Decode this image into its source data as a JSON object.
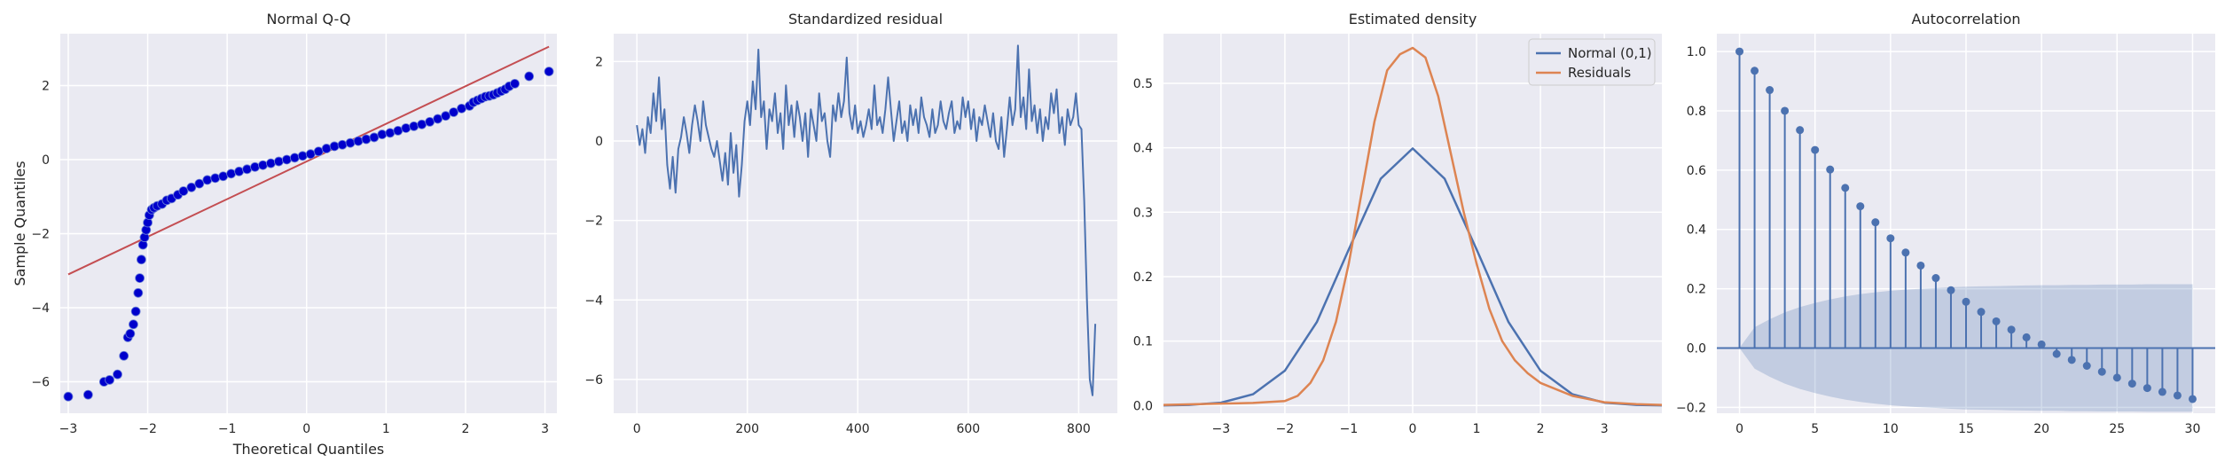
{
  "figure": {
    "background": "#ffffff",
    "axes_facecolor": "#eaeaf2",
    "grid_color": "#ffffff",
    "blue": "#4c72b0",
    "orange": "#dd8452",
    "qq_marker_color": "#0000cc",
    "qq_line_color": "#c44e52"
  },
  "chart_data": [
    {
      "type": "scatter",
      "title": "Normal Q-Q",
      "xlabel": "Theoretical Quantiles",
      "ylabel": "Sample Quantiles",
      "xlim": [
        -3.1,
        3.15
      ],
      "ylim": [
        -6.85,
        3.4
      ],
      "xticks": [
        -3,
        -2,
        -1,
        0,
        1,
        2,
        3
      ],
      "yticks": [
        -6,
        -4,
        -2,
        0,
        2
      ],
      "grid": true,
      "reference_line": {
        "x": [
          -3.0,
          3.05
        ],
        "y": [
          -3.1,
          3.05
        ]
      },
      "points": {
        "x": [
          -3.0,
          -2.75,
          -2.55,
          -2.48,
          -2.38,
          -2.3,
          -2.25,
          -2.22,
          -2.18,
          -2.15,
          -2.12,
          -2.1,
          -2.08,
          -2.06,
          -2.04,
          -2.02,
          -2.0,
          -1.98,
          -1.95,
          -1.92,
          -1.88,
          -1.82,
          -1.76,
          -1.7,
          -1.62,
          -1.55,
          -1.45,
          -1.35,
          -1.25,
          -1.15,
          -1.05,
          -0.95,
          -0.85,
          -0.75,
          -0.65,
          -0.55,
          -0.45,
          -0.35,
          -0.25,
          -0.15,
          -0.05,
          0.05,
          0.15,
          0.25,
          0.35,
          0.45,
          0.55,
          0.65,
          0.75,
          0.85,
          0.95,
          1.05,
          1.15,
          1.25,
          1.35,
          1.45,
          1.55,
          1.65,
          1.75,
          1.85,
          1.95,
          2.05,
          2.1,
          2.15,
          2.2,
          2.25,
          2.3,
          2.35,
          2.4,
          2.45,
          2.5,
          2.55,
          2.62,
          2.8,
          3.05
        ],
        "y": [
          -6.4,
          -6.35,
          -6.0,
          -5.95,
          -5.8,
          -5.3,
          -4.8,
          -4.7,
          -4.45,
          -4.1,
          -3.6,
          -3.2,
          -2.7,
          -2.3,
          -2.1,
          -1.9,
          -1.7,
          -1.5,
          -1.35,
          -1.3,
          -1.25,
          -1.2,
          -1.1,
          -1.05,
          -0.95,
          -0.85,
          -0.75,
          -0.65,
          -0.55,
          -0.5,
          -0.45,
          -0.38,
          -0.32,
          -0.26,
          -0.2,
          -0.15,
          -0.1,
          -0.05,
          0.0,
          0.05,
          0.1,
          0.15,
          0.22,
          0.3,
          0.36,
          0.4,
          0.45,
          0.5,
          0.55,
          0.6,
          0.68,
          0.72,
          0.78,
          0.85,
          0.9,
          0.95,
          1.02,
          1.1,
          1.18,
          1.28,
          1.38,
          1.45,
          1.55,
          1.6,
          1.65,
          1.7,
          1.72,
          1.75,
          1.8,
          1.85,
          1.9,
          1.98,
          2.05,
          2.25,
          2.38
        ]
      }
    },
    {
      "type": "line",
      "title": "Standardized residual",
      "xlim": [
        -42,
        870
      ],
      "ylim": [
        -6.85,
        2.7
      ],
      "xticks": [
        0,
        200,
        400,
        600,
        800
      ],
      "yticks": [
        -6,
        -4,
        -2,
        0,
        2
      ],
      "grid": true,
      "series": [
        {
          "x": [
            0,
            5,
            10,
            15,
            20,
            25,
            30,
            35,
            40,
            45,
            50,
            55,
            60,
            65,
            70,
            75,
            80,
            85,
            90,
            95,
            100,
            105,
            110,
            115,
            120,
            125,
            130,
            135,
            140,
            145,
            150,
            155,
            160,
            165,
            170,
            175,
            180,
            185,
            190,
            195,
            200,
            205,
            210,
            215,
            220,
            225,
            230,
            235,
            240,
            245,
            250,
            255,
            260,
            265,
            270,
            275,
            280,
            285,
            290,
            295,
            300,
            305,
            310,
            315,
            320,
            325,
            330,
            335,
            340,
            345,
            350,
            355,
            360,
            365,
            370,
            375,
            380,
            385,
            390,
            395,
            400,
            405,
            410,
            415,
            420,
            425,
            430,
            435,
            440,
            445,
            450,
            455,
            460,
            465,
            470,
            475,
            480,
            485,
            490,
            495,
            500,
            505,
            510,
            515,
            520,
            525,
            530,
            535,
            540,
            545,
            550,
            555,
            560,
            565,
            570,
            575,
            580,
            585,
            590,
            595,
            600,
            605,
            610,
            615,
            620,
            625,
            630,
            635,
            640,
            645,
            650,
            655,
            660,
            665,
            670,
            675,
            680,
            685,
            690,
            695,
            700,
            705,
            710,
            715,
            720,
            725,
            730,
            735,
            740,
            745,
            750,
            755,
            760,
            765,
            770,
            775,
            780,
            785,
            790,
            795,
            800,
            805,
            810,
            815,
            820,
            825,
            830
          ],
          "values": [
            0.4,
            -0.1,
            0.3,
            -0.3,
            0.6,
            0.2,
            1.2,
            0.5,
            1.6,
            0.3,
            0.8,
            -0.6,
            -1.2,
            -0.4,
            -1.3,
            -0.2,
            0.1,
            0.6,
            0.2,
            -0.3,
            0.4,
            0.9,
            0.5,
            0.0,
            1.0,
            0.4,
            0.1,
            -0.2,
            -0.4,
            0.0,
            -0.5,
            -1.0,
            -0.3,
            -1.1,
            0.2,
            -0.8,
            -0.1,
            -1.4,
            -0.6,
            0.5,
            1.0,
            0.4,
            1.5,
            0.8,
            2.3,
            0.6,
            1.0,
            -0.2,
            0.8,
            0.5,
            1.2,
            0.2,
            0.7,
            -0.2,
            1.4,
            0.4,
            0.9,
            0.1,
            1.0,
            0.6,
            0.0,
            0.7,
            -0.4,
            0.8,
            0.4,
            0.0,
            1.2,
            0.5,
            0.7,
            0.0,
            -0.4,
            0.9,
            0.5,
            1.2,
            0.6,
            1.0,
            2.1,
            0.7,
            0.3,
            0.9,
            0.2,
            0.5,
            0.1,
            0.4,
            0.8,
            0.3,
            1.4,
            0.4,
            0.6,
            0.2,
            0.8,
            1.6,
            0.8,
            0.0,
            0.5,
            1.0,
            0.2,
            0.5,
            0.0,
            0.9,
            0.4,
            0.8,
            0.2,
            1.1,
            0.6,
            0.4,
            0.1,
            0.8,
            0.2,
            0.4,
            1.0,
            0.5,
            0.3,
            0.7,
            1.0,
            0.2,
            0.5,
            0.3,
            1.1,
            0.6,
            1.0,
            0.3,
            0.8,
            0.0,
            0.6,
            0.4,
            0.9,
            0.5,
            0.1,
            0.7,
            0.0,
            -0.2,
            0.6,
            -0.4,
            0.3,
            1.1,
            0.4,
            0.8,
            2.4,
            0.6,
            1.1,
            0.3,
            1.8,
            0.5,
            0.9,
            0.2,
            0.8,
            0.0,
            0.6,
            0.3,
            1.2,
            0.7,
            1.3,
            0.2,
            0.6,
            -0.1,
            0.8,
            0.4,
            0.6,
            1.2,
            0.4,
            0.3,
            -1.5,
            -4.0,
            -6.0,
            -6.4,
            -4.6
          ]
        }
      ]
    },
    {
      "type": "line",
      "title": "Estimated density",
      "xlim": [
        -3.9,
        3.9
      ],
      "ylim": [
        -0.012,
        0.577
      ],
      "xticks": [
        -3,
        -2,
        -1,
        0,
        1,
        2,
        3
      ],
      "yticks": [
        0.0,
        0.1,
        0.2,
        0.3,
        0.4,
        0.5
      ],
      "grid": true,
      "legend_position": "top-right",
      "series": [
        {
          "name": "Normal (0,1)",
          "color": "#4c72b0",
          "x": [
            -3.9,
            -3.5,
            -3.0,
            -2.5,
            -2.0,
            -1.5,
            -1.0,
            -0.5,
            0.0,
            0.5,
            1.0,
            1.5,
            2.0,
            2.5,
            3.0,
            3.5,
            3.9
          ],
          "values": [
            0.0002,
            0.0009,
            0.0044,
            0.0175,
            0.054,
            0.1295,
            0.242,
            0.352,
            0.3989,
            0.352,
            0.242,
            0.1295,
            0.054,
            0.0175,
            0.0044,
            0.0009,
            0.0002
          ]
        },
        {
          "name": "Residuals",
          "color": "#dd8452",
          "x": [
            -3.9,
            -3.0,
            -2.5,
            -2.0,
            -1.8,
            -1.6,
            -1.4,
            -1.2,
            -1.0,
            -0.8,
            -0.6,
            -0.4,
            -0.2,
            0.0,
            0.2,
            0.4,
            0.6,
            0.8,
            1.0,
            1.2,
            1.4,
            1.6,
            1.8,
            2.0,
            2.5,
            3.0,
            3.5,
            3.9
          ],
          "values": [
            0.001,
            0.003,
            0.004,
            0.007,
            0.015,
            0.035,
            0.07,
            0.13,
            0.22,
            0.33,
            0.44,
            0.52,
            0.545,
            0.555,
            0.54,
            0.48,
            0.39,
            0.3,
            0.22,
            0.15,
            0.1,
            0.07,
            0.05,
            0.035,
            0.015,
            0.005,
            0.002,
            0.001
          ]
        }
      ]
    },
    {
      "type": "stem",
      "title": "Autocorrelation",
      "xlim": [
        -1.5,
        31.5
      ],
      "ylim": [
        -0.22,
        1.06
      ],
      "xticks": [
        0,
        5,
        10,
        15,
        20,
        25,
        30
      ],
      "yticks": [
        -0.2,
        0.0,
        0.2,
        0.4,
        0.6,
        0.8,
        1.0
      ],
      "grid": true,
      "lags": [
        0,
        1,
        2,
        3,
        4,
        5,
        6,
        7,
        8,
        9,
        10,
        11,
        12,
        13,
        14,
        15,
        16,
        17,
        18,
        19,
        20,
        21,
        22,
        23,
        24,
        25,
        26,
        27,
        28,
        29,
        30
      ],
      "values": [
        1.0,
        0.935,
        0.87,
        0.8,
        0.735,
        0.668,
        0.602,
        0.54,
        0.478,
        0.424,
        0.37,
        0.322,
        0.278,
        0.236,
        0.195,
        0.156,
        0.122,
        0.09,
        0.062,
        0.036,
        0.012,
        -0.02,
        -0.04,
        -0.06,
        -0.08,
        -0.1,
        -0.12,
        -0.135,
        -0.148,
        -0.16,
        -0.172
      ],
      "confidence_band_upper": [
        0.0,
        0.07,
        0.097,
        0.12,
        0.138,
        0.152,
        0.164,
        0.174,
        0.182,
        0.188,
        0.193,
        0.197,
        0.2,
        0.202,
        0.205,
        0.207,
        0.208,
        0.209,
        0.21,
        0.211,
        0.212,
        0.212,
        0.213,
        0.213,
        0.214,
        0.214,
        0.214,
        0.215,
        0.215,
        0.215,
        0.215
      ],
      "band_color": "#4c72b0"
    }
  ]
}
